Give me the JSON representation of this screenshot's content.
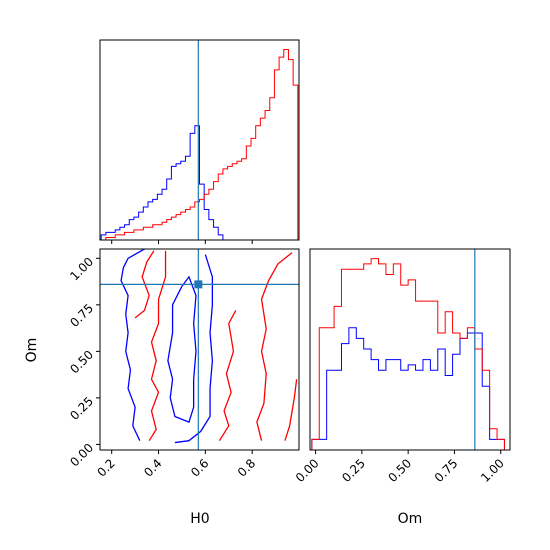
{
  "chart_data": [
    {
      "type": "histogram",
      "panel": "H0 marginal",
      "xlim": [
        0.15,
        1.0
      ],
      "truth": 0.57,
      "x_ticks": [
        0.2,
        0.4,
        0.6,
        0.8
      ],
      "bins": [
        0.155,
        0.175,
        0.195,
        0.215,
        0.235,
        0.255,
        0.275,
        0.295,
        0.315,
        0.335,
        0.355,
        0.375,
        0.395,
        0.415,
        0.435,
        0.455,
        0.475,
        0.495,
        0.515,
        0.535,
        0.555,
        0.575,
        0.595,
        0.615,
        0.635,
        0.655,
        0.675,
        0.695,
        0.715,
        0.735,
        0.755,
        0.775,
        0.795,
        0.815,
        0.835,
        0.855,
        0.875,
        0.895,
        0.915,
        0.935,
        0.955,
        0.975,
        0.995
      ],
      "series": [
        {
          "color": "#0000ff",
          "counts": [
            2,
            3,
            3,
            4,
            5,
            6,
            8,
            9,
            11,
            13,
            15,
            16,
            18,
            20,
            24,
            29,
            30,
            31,
            33,
            42,
            45,
            22,
            12,
            8,
            5,
            2,
            0,
            0,
            0,
            0,
            0,
            0,
            0,
            0,
            0,
            0,
            0,
            0,
            0,
            0,
            0,
            0
          ]
        },
        {
          "color": "#ff0000",
          "counts": [
            0,
            1,
            1,
            2,
            2,
            3,
            3,
            4,
            4,
            5,
            5,
            6,
            6,
            7,
            8,
            9,
            10,
            11,
            12,
            13,
            15,
            16,
            18,
            20,
            23,
            26,
            28,
            29,
            30,
            31,
            32,
            37,
            40,
            45,
            48,
            51,
            56,
            67,
            72,
            75,
            71,
            61
          ]
        }
      ]
    },
    {
      "type": "contour",
      "panel": "H0 vs Om",
      "xlabel": "H0",
      "ylabel": "Om",
      "xlim": [
        0.15,
        1.0
      ],
      "ylim": [
        -0.03,
        1.05
      ],
      "truth": {
        "x": 0.57,
        "y": 0.86
      },
      "x_ticks": [
        0.2,
        0.4,
        0.6,
        0.8
      ],
      "y_ticks": [
        0.0,
        0.25,
        0.5,
        0.75,
        1.0
      ],
      "contours": [
        {
          "color": "#0000ff",
          "lines": [
            [
              [
                0.34,
                1.05
              ],
              [
                0.27,
                1.0
              ],
              [
                0.25,
                0.95
              ],
              [
                0.24,
                0.88
              ],
              [
                0.27,
                0.8
              ],
              [
                0.26,
                0.7
              ],
              [
                0.27,
                0.6
              ],
              [
                0.26,
                0.5
              ],
              [
                0.28,
                0.4
              ],
              [
                0.27,
                0.3
              ],
              [
                0.3,
                0.2
              ],
              [
                0.29,
                0.1
              ],
              [
                0.32,
                0.02
              ]
            ],
            [
              [
                0.47,
                0.01
              ],
              [
                0.53,
                0.02
              ],
              [
                0.58,
                0.07
              ],
              [
                0.62,
                0.15
              ],
              [
                0.62,
                0.3
              ],
              [
                0.63,
                0.45
              ],
              [
                0.62,
                0.6
              ],
              [
                0.63,
                0.75
              ],
              [
                0.63,
                0.9
              ],
              [
                0.6,
                1.02
              ]
            ],
            [
              [
                0.5,
                0.85
              ],
              [
                0.46,
                0.75
              ],
              [
                0.46,
                0.6
              ],
              [
                0.44,
                0.45
              ],
              [
                0.46,
                0.35
              ],
              [
                0.45,
                0.25
              ],
              [
                0.47,
                0.15
              ],
              [
                0.53,
                0.12
              ],
              [
                0.55,
                0.2
              ],
              [
                0.55,
                0.35
              ],
              [
                0.56,
                0.5
              ],
              [
                0.55,
                0.65
              ],
              [
                0.56,
                0.8
              ],
              [
                0.53,
                0.9
              ],
              [
                0.5,
                0.85
              ]
            ]
          ]
        },
        {
          "color": "#ff0000",
          "lines": [
            [
              [
                0.3,
                0.68
              ],
              [
                0.34,
                0.72
              ],
              [
                0.36,
                0.8
              ],
              [
                0.33,
                0.9
              ],
              [
                0.35,
                0.98
              ],
              [
                0.38,
                1.04
              ]
            ],
            [
              [
                0.36,
                0.02
              ],
              [
                0.39,
                0.08
              ],
              [
                0.37,
                0.18
              ],
              [
                0.4,
                0.28
              ],
              [
                0.37,
                0.35
              ],
              [
                0.39,
                0.45
              ],
              [
                0.37,
                0.55
              ],
              [
                0.4,
                0.65
              ],
              [
                0.4,
                0.78
              ],
              [
                0.43,
                0.9
              ],
              [
                0.43,
                1.04
              ]
            ],
            [
              [
                0.97,
                1.03
              ],
              [
                0.91,
                0.97
              ],
              [
                0.87,
                0.88
              ],
              [
                0.84,
                0.78
              ],
              [
                0.86,
                0.62
              ],
              [
                0.84,
                0.5
              ],
              [
                0.86,
                0.38
              ],
              [
                0.85,
                0.22
              ],
              [
                0.82,
                0.12
              ],
              [
                0.84,
                0.02
              ]
            ],
            [
              [
                0.66,
                0.02
              ],
              [
                0.7,
                0.1
              ],
              [
                0.68,
                0.18
              ],
              [
                0.71,
                0.28
              ],
              [
                0.69,
                0.38
              ],
              [
                0.72,
                0.5
              ],
              [
                0.7,
                0.65
              ],
              [
                0.73,
                0.72
              ]
            ],
            [
              [
                0.1,
                0.0
              ]
            ],
            [
              [
                0.94,
                0.02
              ],
              [
                0.96,
                0.1
              ],
              [
                0.98,
                0.25
              ],
              [
                0.99,
                0.35
              ]
            ]
          ]
        }
      ]
    },
    {
      "type": "histogram",
      "panel": "Om marginal",
      "xlabel": "Om",
      "xlim": [
        -0.03,
        1.05
      ],
      "truth": 0.86,
      "x_ticks": [
        0.0,
        0.25,
        0.5,
        0.75,
        1.0
      ],
      "bins": [
        -0.02,
        0.02,
        0.06,
        0.1,
        0.14,
        0.18,
        0.22,
        0.26,
        0.3,
        0.34,
        0.38,
        0.42,
        0.46,
        0.5,
        0.54,
        0.58,
        0.62,
        0.66,
        0.7,
        0.74,
        0.78,
        0.82,
        0.86,
        0.9,
        0.94,
        0.98,
        1.02
      ],
      "series": [
        {
          "color": "#0000ff",
          "counts": [
            2,
            2,
            15,
            15,
            20,
            23,
            21,
            19,
            17,
            15,
            17,
            17,
            15,
            16,
            15,
            17,
            15,
            19,
            14,
            18,
            21,
            22,
            22,
            12,
            2,
            2
          ]
        },
        {
          "color": "#ff0000",
          "counts": [
            2,
            23,
            23,
            27,
            34,
            34,
            34,
            35,
            36,
            35,
            33,
            35,
            31,
            32,
            28,
            28,
            28,
            22,
            26,
            22,
            21,
            23,
            19,
            15,
            4,
            2
          ]
        }
      ]
    }
  ]
}
